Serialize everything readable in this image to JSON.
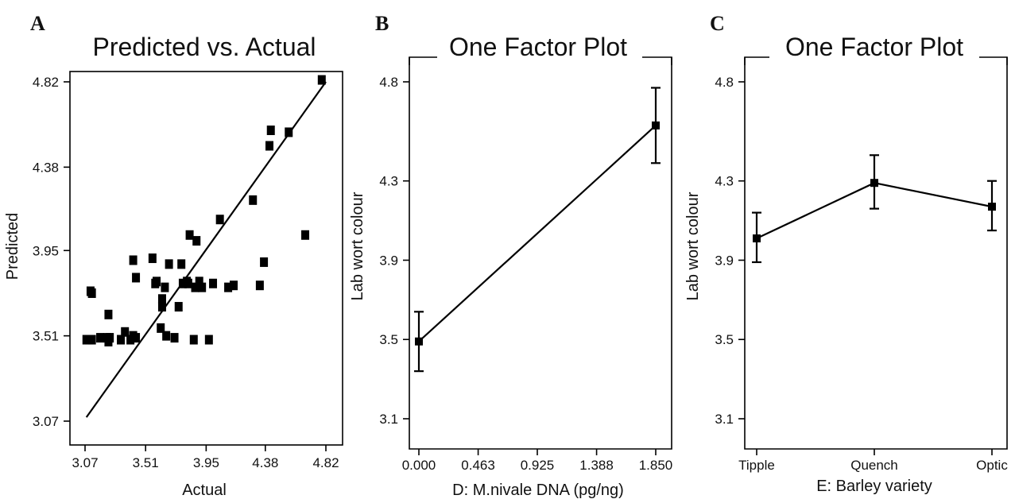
{
  "panels": [
    {
      "label": "A",
      "title": "Predicted vs. Actual",
      "xlabel": "Actual",
      "ylabel": "Predicted"
    },
    {
      "label": "B",
      "title": "One Factor Plot",
      "xlabel": "D: M.nivale DNA (pg/ng)",
      "ylabel": "Lab wort colour"
    },
    {
      "label": "C",
      "title": "One Factor Plot",
      "xlabel": "E: Barley variety",
      "ylabel": "Lab wort colour"
    }
  ],
  "chart_data": [
    {
      "type": "scatter",
      "title": "Predicted vs. Actual",
      "xlabel": "Actual",
      "ylabel": "Predicted",
      "xlim": [
        3.07,
        4.82
      ],
      "ylim": [
        3.07,
        4.82
      ],
      "xticks": [
        "3.07",
        "3.51",
        "3.95",
        "4.38",
        "4.82"
      ],
      "yticks": [
        "3.07",
        "3.51",
        "3.95",
        "4.38",
        "4.82"
      ],
      "fit_line": [
        [
          3.08,
          3.09
        ],
        [
          4.82,
          4.82
        ]
      ],
      "points": [
        [
          3.08,
          3.49
        ],
        [
          3.1,
          3.49
        ],
        [
          3.12,
          3.49
        ],
        [
          3.11,
          3.74
        ],
        [
          3.12,
          3.73
        ],
        [
          3.18,
          3.5
        ],
        [
          3.23,
          3.5
        ],
        [
          3.24,
          3.48
        ],
        [
          3.25,
          3.5
        ],
        [
          3.24,
          3.62
        ],
        [
          3.33,
          3.49
        ],
        [
          3.36,
          3.53
        ],
        [
          3.4,
          3.49
        ],
        [
          3.44,
          3.5
        ],
        [
          3.42,
          3.51
        ],
        [
          3.42,
          3.9
        ],
        [
          3.44,
          3.81
        ],
        [
          3.56,
          3.91
        ],
        [
          3.58,
          3.78
        ],
        [
          3.59,
          3.79
        ],
        [
          3.62,
          3.55
        ],
        [
          3.63,
          3.66
        ],
        [
          3.63,
          3.7
        ],
        [
          3.65,
          3.76
        ],
        [
          3.66,
          3.51
        ],
        [
          3.68,
          3.88
        ],
        [
          3.72,
          3.5
        ],
        [
          3.75,
          3.66
        ],
        [
          3.77,
          3.88
        ],
        [
          3.78,
          3.78
        ],
        [
          3.81,
          3.79
        ],
        [
          3.82,
          3.78
        ],
        [
          3.83,
          4.03
        ],
        [
          3.86,
          3.49
        ],
        [
          3.87,
          3.76
        ],
        [
          3.88,
          4.0
        ],
        [
          3.9,
          3.79
        ],
        [
          3.92,
          3.76
        ],
        [
          3.97,
          3.49
        ],
        [
          4.0,
          3.78
        ],
        [
          4.05,
          4.11
        ],
        [
          4.11,
          3.76
        ],
        [
          4.15,
          3.77
        ],
        [
          4.29,
          4.21
        ],
        [
          4.34,
          3.77
        ],
        [
          4.37,
          3.89
        ],
        [
          4.41,
          4.49
        ],
        [
          4.42,
          4.57
        ],
        [
          4.55,
          4.56
        ],
        [
          4.67,
          4.03
        ],
        [
          4.79,
          4.83
        ]
      ]
    },
    {
      "type": "line",
      "title": "One Factor Plot",
      "xlabel": "D: M.nivale DNA (pg/ng)",
      "ylabel": "Lab wort colour",
      "xlim": [
        0,
        1.85
      ],
      "ylim": [
        3.1,
        4.8
      ],
      "xticks": [
        "0.000",
        "0.463",
        "0.925",
        "1.388",
        "1.850"
      ],
      "yticks": [
        "3.1",
        "3.5",
        "3.9",
        "4.3",
        "4.8"
      ],
      "points": [
        {
          "x": 0,
          "y": 3.49,
          "lo": 3.34,
          "hi": 3.64
        },
        {
          "x": 1.85,
          "y": 4.58,
          "lo": 4.39,
          "hi": 4.77
        }
      ]
    },
    {
      "type": "line",
      "title": "One Factor Plot",
      "xlabel": "E: Barley variety",
      "ylabel": "Lab wort colour",
      "categories": [
        "Tipple",
        "Quench",
        "Optic"
      ],
      "ylim": [
        3.1,
        4.8
      ],
      "yticks": [
        "3.1",
        "3.5",
        "3.9",
        "4.3",
        "4.8"
      ],
      "points": [
        {
          "y": 4.01,
          "lo": 3.89,
          "hi": 4.14
        },
        {
          "y": 4.29,
          "lo": 4.16,
          "hi": 4.43
        },
        {
          "y": 4.17,
          "lo": 4.05,
          "hi": 4.3
        }
      ]
    }
  ]
}
